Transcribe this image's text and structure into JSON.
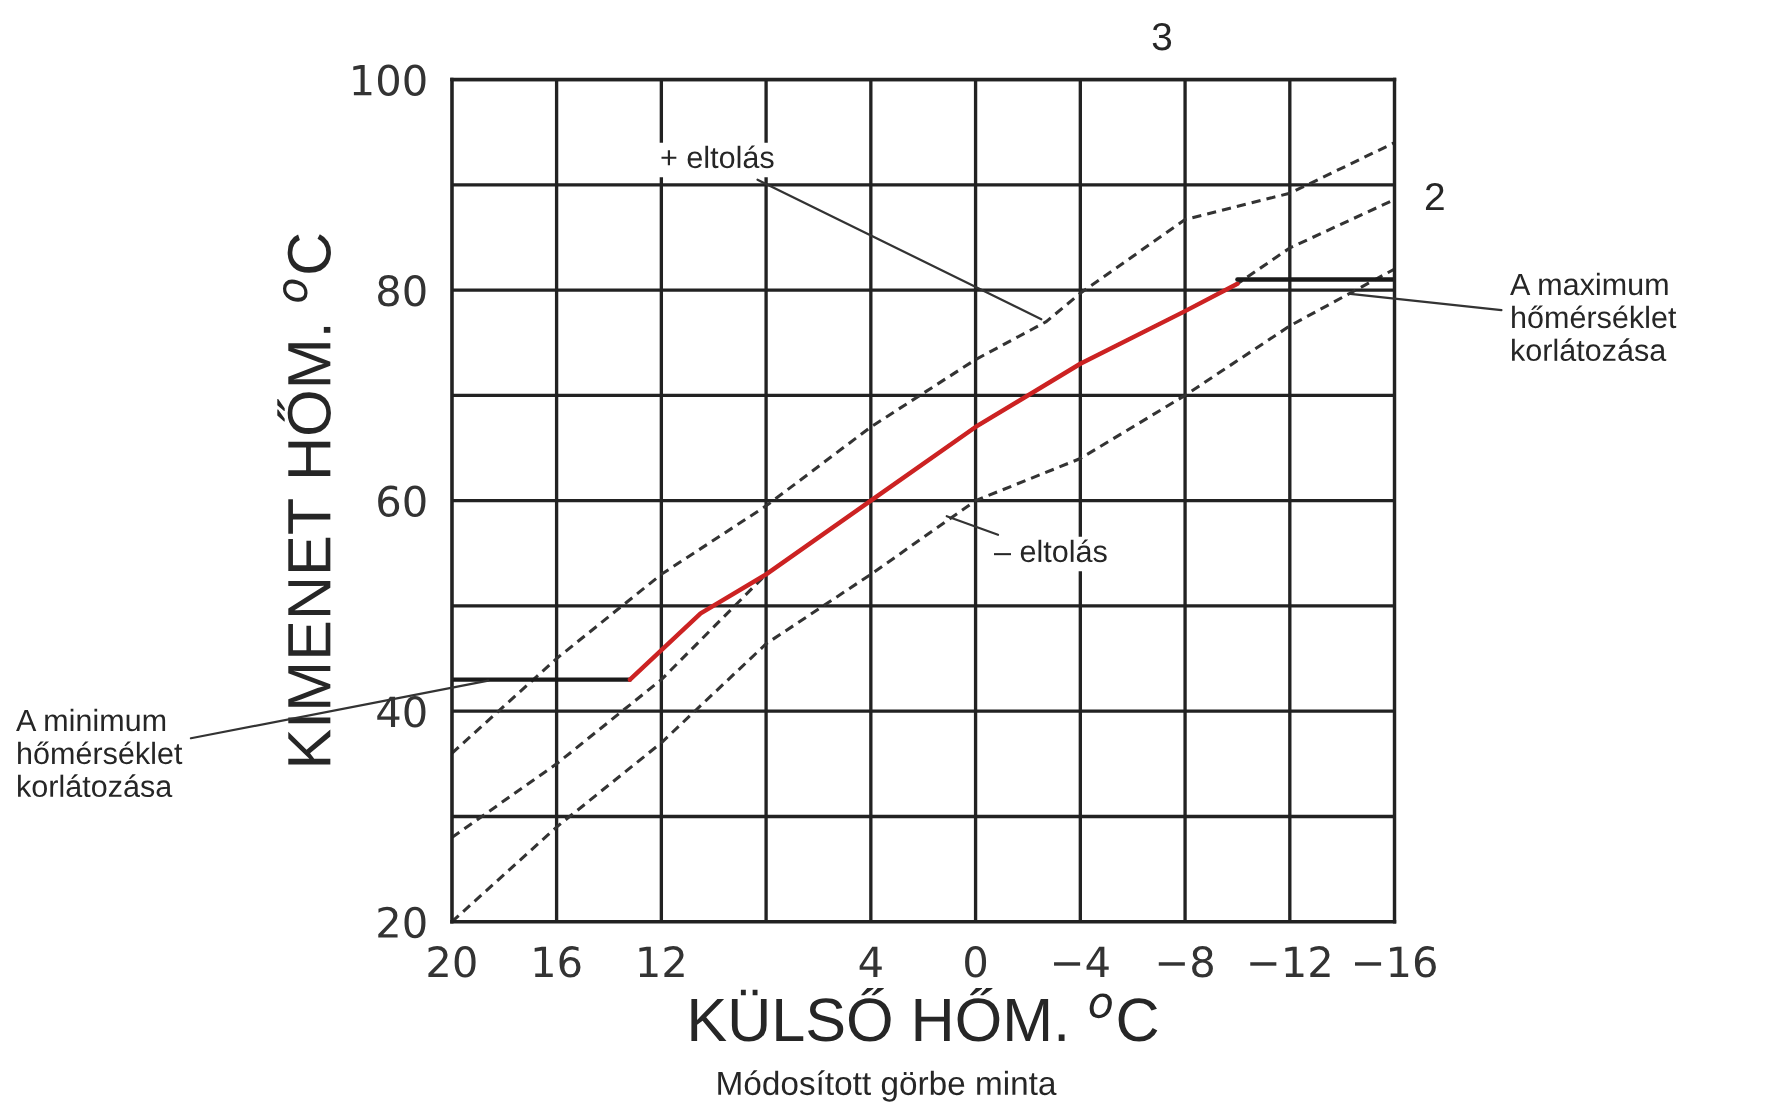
{
  "chart_data": {
    "type": "line",
    "xlabel": "KÜLSŐ HŐM. $^{o}$C",
    "ylabel": "KIMENET HŐM. $^{o}$C",
    "series": [
      {
        "color": "#333333",
        "line_style": "dashed",
        "x": [
          20,
          16,
          12,
          8,
          4,
          0,
          -2.7,
          -4,
          -8,
          -12,
          -16
        ],
        "values": [
          36,
          45,
          53,
          59.5,
          67,
          73.4,
          77,
          79.7,
          86.7,
          89.2,
          94
        ]
      },
      {
        "color": "#333333",
        "line_style": "dashed",
        "x": [
          20,
          16,
          12,
          8,
          4,
          0,
          -4,
          -8,
          -10,
          -12,
          -16
        ],
        "values": [
          28,
          35,
          43,
          53,
          60,
          67,
          73,
          78,
          80.6,
          84,
          88.6
        ]
      },
      {
        "color": "#333333",
        "line_style": "dashed",
        "x": [
          20,
          16,
          12,
          8,
          4,
          0,
          -4,
          -8,
          -12,
          -16
        ],
        "values": [
          20,
          29,
          37,
          46.4,
          53,
          60,
          64,
          70,
          76.6,
          82
        ]
      },
      {
        "color": "#1a1a1a",
        "line_style": "solid",
        "x": [
          20,
          13.2
        ],
        "values": [
          43,
          43
        ]
      },
      {
        "color": "#cc2222",
        "line_style": "solid",
        "x": [
          13.2,
          10.5,
          8,
          4,
          0,
          -4,
          -8,
          -10
        ],
        "values": [
          43,
          49.3,
          53,
          60,
          67,
          73,
          78,
          80.6
        ]
      },
      {
        "color": "#1a1a1a",
        "line_style": "solid",
        "x": [
          -10,
          -16
        ],
        "values": [
          81,
          81
        ]
      }
    ],
    "xlim": [
      20,
      -16
    ],
    "ylim": [
      20,
      100
    ],
    "xticks": [
      20,
      16,
      12,
      {
        "value": 8,
        "label": null
      },
      4,
      0,
      {
        "value": -4,
        "label": "−4"
      },
      {
        "value": -8,
        "label": "−8"
      },
      {
        "value": -12,
        "label": "−12"
      },
      {
        "value": -16,
        "label": "−16"
      }
    ],
    "yticks": [
      20,
      {
        "value": 30,
        "label": null
      },
      40,
      {
        "value": 50,
        "label": null
      },
      60,
      {
        "value": 70,
        "label": null
      },
      80,
      {
        "value": 90,
        "label": null
      },
      100
    ],
    "grid": true,
    "marker": "none",
    "legend": false,
    "annotations": [
      {
        "text": "+ eltolás",
        "x": -2.7,
        "y": 77
      },
      {
        "text": "– eltolás",
        "x": 1.3,
        "y": 58.7
      },
      {
        "text": "A maximum\nhőmérséklet\nkorlátozása",
        "x": -14.1,
        "y": 79.7
      },
      {
        "text": "A minimum\nhőmérséklet\nkorlátozása",
        "x": 18.4,
        "y": 43
      },
      {
        "text": "2",
        "x": -16,
        "y": 88.6
      },
      "3",
      "Módosított görbe minta"
    ]
  }
}
